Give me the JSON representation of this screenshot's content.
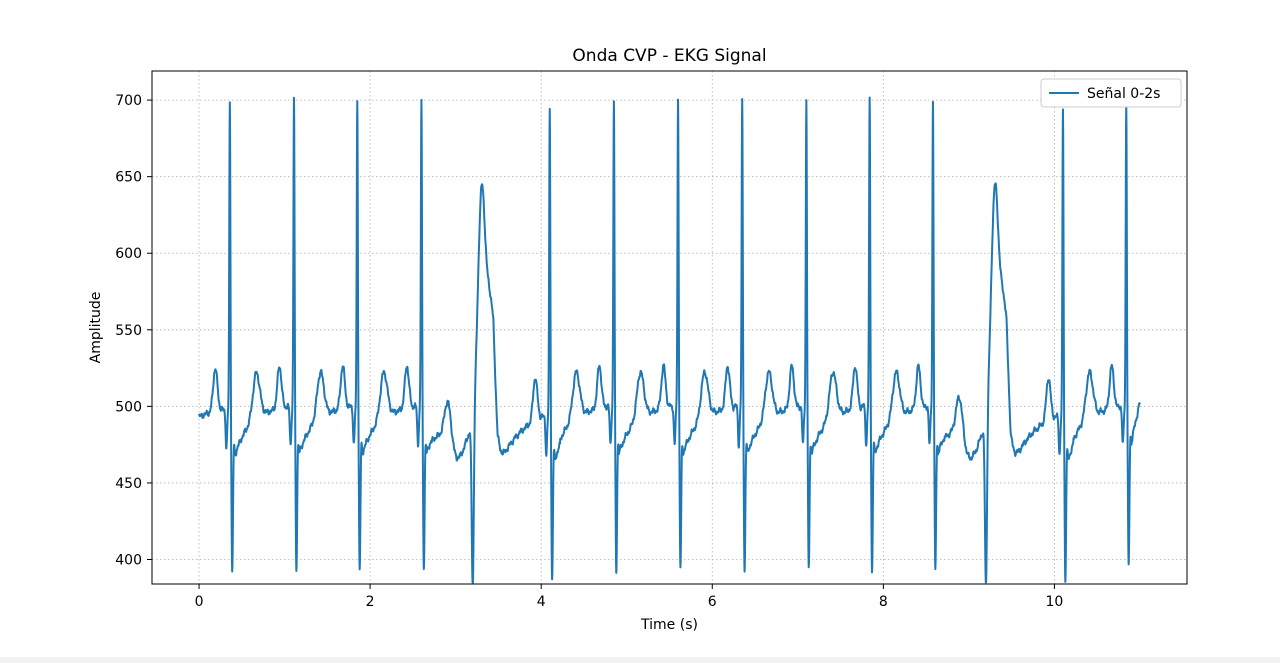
{
  "colors": {
    "series": "#1f77b4",
    "grid": "#b0b0b0",
    "axes": "#000000",
    "background": "#ffffff"
  },
  "chart_data": {
    "type": "line",
    "title": "Onda CVP - EKG Signal",
    "xlabel": "Time (s)",
    "ylabel": "Amplitude",
    "xlim": [
      -0.55,
      11.55
    ],
    "ylim": [
      384,
      719
    ],
    "xticks": [
      0,
      2,
      4,
      6,
      8,
      10
    ],
    "xtick_labels": [
      "0",
      "2",
      "4",
      "6",
      "8",
      "10"
    ],
    "yticks": [
      400,
      450,
      500,
      550,
      600,
      650,
      700
    ],
    "ytick_labels": [
      "400",
      "450",
      "500",
      "550",
      "600",
      "650",
      "700"
    ],
    "grid": true,
    "grid_style": "dotted",
    "legend": {
      "location": "top-right",
      "entries": [
        "Señal 0-2s"
      ]
    },
    "x_range": [
      0,
      11
    ],
    "normal_beat_times_s": [
      0.36,
      1.11,
      1.85,
      2.6,
      4.1,
      4.85,
      5.6,
      6.35,
      7.1,
      7.84,
      8.58,
      10.1,
      10.84
    ],
    "normal_beat_r_peaks": [
      701,
      701,
      701,
      700,
      699,
      700,
      702,
      700,
      700,
      701,
      700,
      699,
      699
    ],
    "normal_beat_s_troughs": [
      393,
      393,
      393,
      395,
      391,
      392,
      394,
      393,
      393,
      392,
      392,
      391,
      393
    ],
    "wide_complex_times_s": [
      3.22,
      9.22
    ],
    "wide_complex_peaks": [
      627,
      628
    ],
    "wide_complex_troughs": [
      387,
      388
    ],
    "baseline_start": 493,
    "baseline_end": 520,
    "series": [
      {
        "name": "Señal 0-2s"
      }
    ]
  }
}
